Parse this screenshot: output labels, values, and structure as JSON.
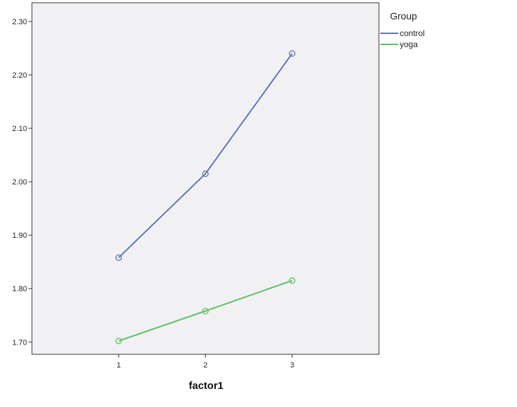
{
  "chart_data": {
    "type": "line",
    "xlabel": "factor1",
    "ylabel": "",
    "x": [
      1,
      2,
      3
    ],
    "x_tick_labels": [
      "1",
      "2",
      "3"
    ],
    "y_ticks": [
      1.7,
      1.8,
      1.9,
      2.0,
      2.1,
      2.2,
      2.3
    ],
    "y_tick_labels": [
      "1.70",
      "1.80",
      "1.90",
      "2.00",
      "2.10",
      "2.20",
      "2.30"
    ],
    "xlim": [
      0.0,
      4.0
    ],
    "ylim": [
      1.677,
      2.335
    ],
    "grid": false,
    "legend": {
      "title": "Group",
      "placement": "right"
    },
    "markers": "open-circle",
    "series": [
      {
        "name": "control",
        "color": "#6274b8",
        "values": [
          1.858,
          2.015,
          2.24
        ]
      },
      {
        "name": "yoga",
        "color": "#5cbf63",
        "values": [
          1.702,
          1.758,
          1.815
        ]
      }
    ]
  },
  "colors": {
    "plot_background": "#f1f1f4",
    "axis": "#333333"
  }
}
